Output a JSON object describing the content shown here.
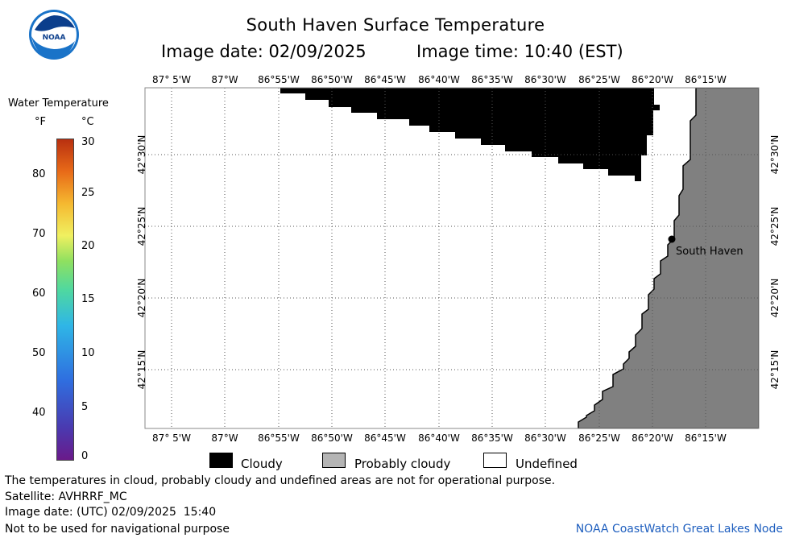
{
  "header": {
    "logo_text": "NOAA",
    "title": "South Haven Surface Temperature",
    "image_date": "Image date: 02/09/2025",
    "image_time": "Image time: 10:40 (EST)"
  },
  "colorbar": {
    "title": "Water Temperature",
    "unit_f": "°F",
    "unit_c": "°C",
    "f_ticks": [
      "80",
      "70",
      "60",
      "50",
      "40"
    ],
    "c_ticks": [
      "30",
      "25",
      "20",
      "15",
      "10",
      "5",
      "0"
    ]
  },
  "map": {
    "lon_labels": [
      "87° 5'W",
      "87°W",
      "86°55'W",
      "86°50'W",
      "86°45'W",
      "86°40'W",
      "86°35'W",
      "86°30'W",
      "86°25'W",
      "86°20'W",
      "86°15'W"
    ],
    "lat_labels": [
      "42°30'N",
      "42°25'N",
      "42°20'N",
      "42°15'N"
    ],
    "place_label": "South Haven",
    "colors": {
      "cloud": "#000000",
      "land": "#808080",
      "undefined": "#ffffff"
    }
  },
  "legend": {
    "cloudy": "Cloudy",
    "probably_cloudy": "Probably cloudy",
    "undefined": "Undefined"
  },
  "footer": {
    "note": "The temperatures in cloud, probably cloudy and undefined areas are not for operational purpose.",
    "satellite": "Satellite: AVHRRF_MC",
    "utc_date": "Image date: (UTC) 02/09/2025  15:40",
    "nav_warning": "Not to be used for navigational purpose",
    "credit": "NOAA CoastWatch Great Lakes Node"
  }
}
